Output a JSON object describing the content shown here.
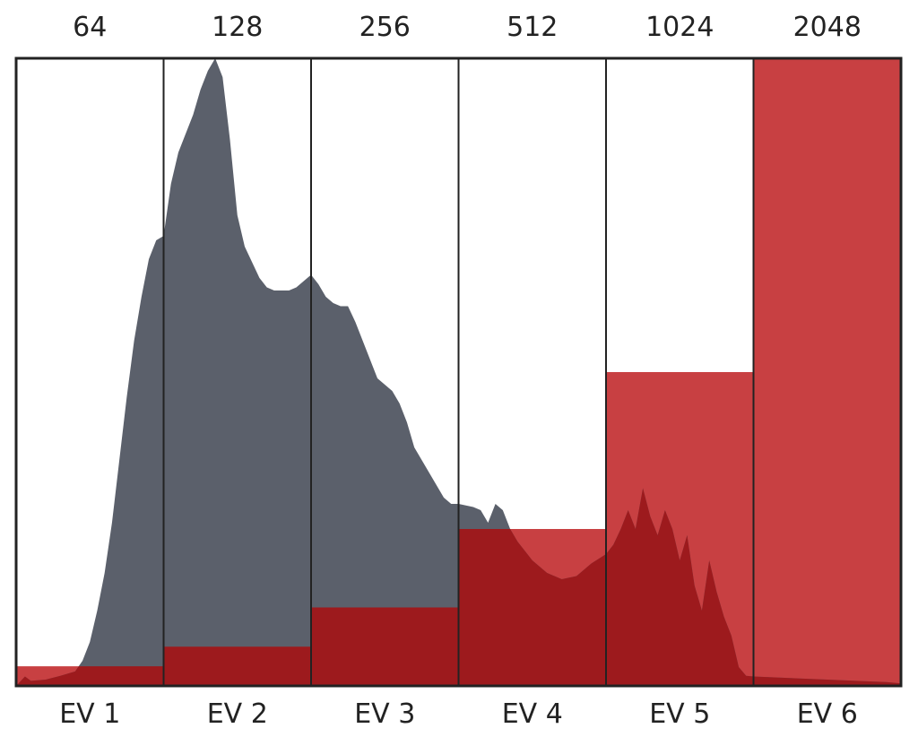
{
  "chart_data": {
    "type": "bar",
    "title": "",
    "xlabel": "",
    "ylabel": "",
    "ylim": [
      0,
      2048
    ],
    "grid": false,
    "colors": {
      "histogram": "#5b606b",
      "bars": "#c84042",
      "overlap": "#9d1a1d",
      "frame": "#222222"
    },
    "categories": [
      "EV 1",
      "EV 2",
      "EV 3",
      "EV 4",
      "EV 5",
      "EV 6"
    ],
    "top_labels": [
      "64",
      "128",
      "256",
      "512",
      "1024",
      "2048"
    ],
    "values": [
      64,
      128,
      256,
      512,
      1024,
      2048
    ],
    "histogram": {
      "x_range": [
        0,
        6
      ],
      "y_range": [
        0,
        100
      ],
      "points": [
        [
          0.0,
          0.0
        ],
        [
          0.06,
          1.5
        ],
        [
          0.1,
          0.8
        ],
        [
          0.2,
          1.0
        ],
        [
          0.3,
          1.6
        ],
        [
          0.4,
          2.3
        ],
        [
          0.45,
          4.0
        ],
        [
          0.5,
          7.0
        ],
        [
          0.55,
          12.0
        ],
        [
          0.6,
          18.0
        ],
        [
          0.65,
          26.0
        ],
        [
          0.7,
          36.0
        ],
        [
          0.75,
          46.0
        ],
        [
          0.8,
          55.0
        ],
        [
          0.85,
          62.0
        ],
        [
          0.9,
          68.0
        ],
        [
          0.95,
          71.0
        ],
        [
          1.0,
          71.7
        ],
        [
          1.05,
          80.0
        ],
        [
          1.1,
          85.0
        ],
        [
          1.15,
          88.0
        ],
        [
          1.2,
          91.0
        ],
        [
          1.25,
          95.0
        ],
        [
          1.3,
          98.0
        ],
        [
          1.35,
          100.0
        ],
        [
          1.4,
          97.0
        ],
        [
          1.45,
          87.0
        ],
        [
          1.5,
          75.0
        ],
        [
          1.55,
          70.0
        ],
        [
          1.6,
          67.5
        ],
        [
          1.65,
          65.0
        ],
        [
          1.7,
          63.5
        ],
        [
          1.75,
          63.0
        ],
        [
          1.8,
          63.0
        ],
        [
          1.85,
          63.0
        ],
        [
          1.9,
          63.5
        ],
        [
          1.95,
          64.5
        ],
        [
          2.0,
          65.5
        ],
        [
          2.05,
          64.0
        ],
        [
          2.1,
          62.0
        ],
        [
          2.15,
          61.0
        ],
        [
          2.2,
          60.5
        ],
        [
          2.25,
          60.5
        ],
        [
          2.3,
          58.0
        ],
        [
          2.35,
          55.0
        ],
        [
          2.4,
          52.0
        ],
        [
          2.45,
          49.0
        ],
        [
          2.5,
          48.0
        ],
        [
          2.55,
          47.0
        ],
        [
          2.6,
          45.0
        ],
        [
          2.65,
          42.0
        ],
        [
          2.7,
          38.0
        ],
        [
          2.75,
          36.0
        ],
        [
          2.8,
          34.0
        ],
        [
          2.85,
          32.0
        ],
        [
          2.9,
          30.0
        ],
        [
          2.95,
          29.0
        ],
        [
          3.0,
          29.0
        ],
        [
          3.1,
          28.5
        ],
        [
          3.15,
          28.0
        ],
        [
          3.2,
          26.0
        ],
        [
          3.25,
          29.0
        ],
        [
          3.3,
          28.0
        ],
        [
          3.35,
          25.0
        ],
        [
          3.4,
          23.0
        ],
        [
          3.5,
          20.0
        ],
        [
          3.6,
          18.0
        ],
        [
          3.7,
          17.0
        ],
        [
          3.8,
          17.5
        ],
        [
          3.9,
          19.5
        ],
        [
          4.0,
          21.0
        ],
        [
          4.05,
          22.5
        ],
        [
          4.1,
          25.0
        ],
        [
          4.15,
          28.0
        ],
        [
          4.2,
          25.0
        ],
        [
          4.25,
          31.5
        ],
        [
          4.3,
          27.0
        ],
        [
          4.35,
          24.0
        ],
        [
          4.4,
          28.0
        ],
        [
          4.45,
          25.0
        ],
        [
          4.5,
          20.0
        ],
        [
          4.55,
          24.0
        ],
        [
          4.6,
          16.0
        ],
        [
          4.65,
          12.0
        ],
        [
          4.7,
          20.0
        ],
        [
          4.75,
          15.0
        ],
        [
          4.8,
          11.0
        ],
        [
          4.85,
          8.0
        ],
        [
          4.9,
          3.0
        ],
        [
          4.95,
          1.6
        ],
        [
          5.0,
          1.5
        ],
        [
          5.5,
          1.0
        ],
        [
          5.9,
          0.6
        ],
        [
          6.0,
          0.4
        ]
      ]
    }
  }
}
